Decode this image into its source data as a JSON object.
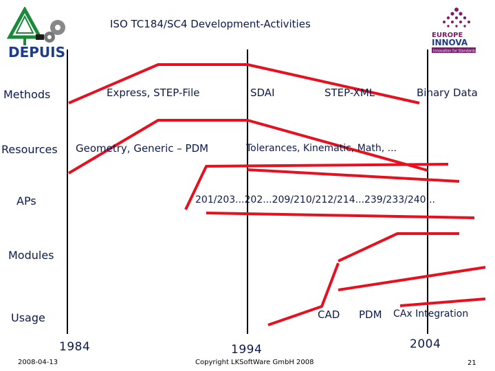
{
  "title": "ISO TC184/SC4 Development-Activities",
  "logos": {
    "left": {
      "name": "DEPUIS",
      "text": "DEPUIS"
    },
    "right": {
      "name": "EUROPE INNOVA",
      "line1": "EUROPE",
      "line2": "INNOVA",
      "tagline": "Innovation for Standards"
    }
  },
  "rows": {
    "methods": {
      "label": "Methods",
      "items": [
        "Express, STEP-File",
        "SDAI",
        "STEP-XML",
        "Binary Data"
      ]
    },
    "resources": {
      "label": "Resources",
      "items": [
        "Geometry, Generic – PDM",
        "Tolerances, Kinematic, Math, ..."
      ]
    },
    "aps": {
      "label": "APs",
      "items": [
        "201/203...202...209/210/212/214...239/233/240..."
      ]
    },
    "modules": {
      "label": "Modules"
    },
    "usage": {
      "label": "Usage",
      "items": [
        "CAD",
        "PDM",
        "CAx Integration"
      ]
    }
  },
  "years": [
    "1984",
    "1994",
    "2004"
  ],
  "footer": {
    "date": "2008-04-13",
    "copyright": "Copyright LKSoftWare GmbH 2008",
    "page": "21"
  },
  "colors": {
    "trend_line": "#e8101e",
    "timeline": "#000000",
    "text": "#0b1a4d",
    "logo_green": "#1a8a3a",
    "logo_blue": "#1f3c8a",
    "europe_innova_purple": "#7b1c6e"
  }
}
